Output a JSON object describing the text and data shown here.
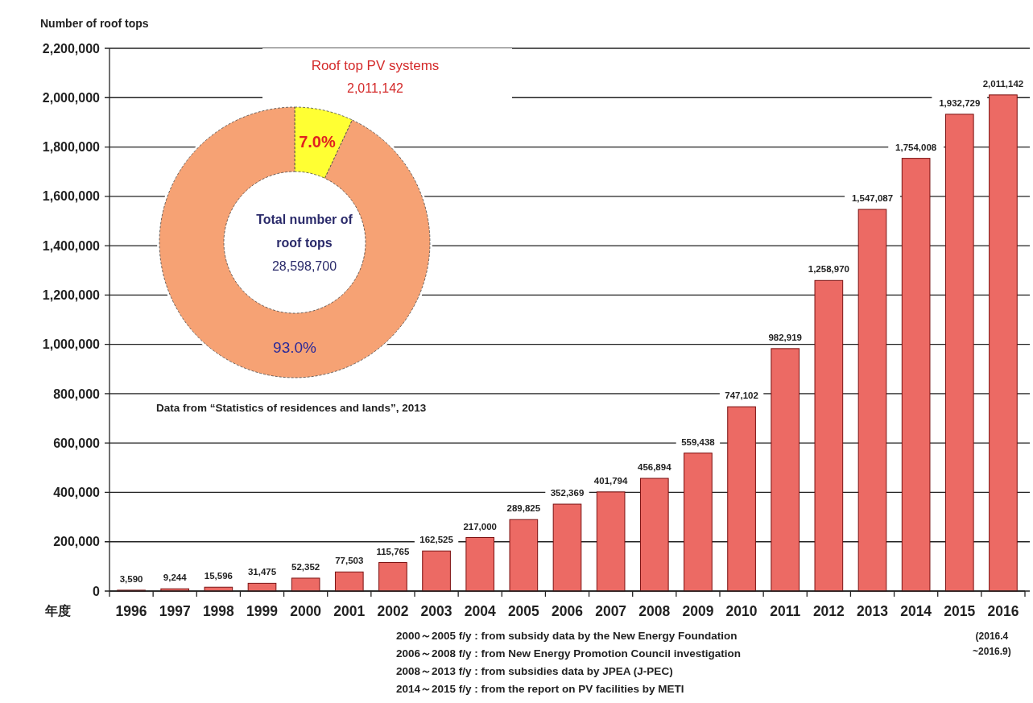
{
  "chart_data": [
    {
      "type": "bar",
      "ylabel": "Number of roof tops",
      "xlabel": "年度",
      "categories": [
        "1996",
        "1997",
        "1998",
        "1999",
        "2000",
        "2001",
        "2002",
        "2003",
        "2004",
        "2005",
        "2006",
        "2007",
        "2008",
        "2009",
        "2010",
        "2011",
        "2012",
        "2013",
        "2014",
        "2015",
        "2016"
      ],
      "values": [
        3590,
        9244,
        15596,
        31475,
        52352,
        77503,
        115765,
        162525,
        217000,
        289825,
        352369,
        401794,
        456894,
        559438,
        747102,
        982919,
        1258970,
        1547087,
        1754008,
        1932729,
        2011142
      ],
      "value_labels": [
        "3,590",
        "9,244",
        "15,596",
        "31,475",
        "52,352",
        "77,503",
        "115,765",
        "162,525",
        "217,000",
        "289,825",
        "352,369",
        "401,794",
        "456,894",
        "559,438",
        "747,102",
        "982,919",
        "1,258,970",
        "1,547,087",
        "1,754,008",
        "1,932,729",
        "2,011,142"
      ],
      "color": "#ec6a64",
      "ylim": [
        0,
        2200000
      ],
      "yticks": [
        {
          "value": 0,
          "label": "0"
        },
        {
          "value": 200000,
          "label": "200,000"
        },
        {
          "value": 400000,
          "label": "400,000"
        },
        {
          "value": 600000,
          "label": "600,000"
        },
        {
          "value": 800000,
          "label": "800,000"
        },
        {
          "value": 1000000,
          "label": "1,000,000"
        },
        {
          "value": 1200000,
          "label": "1,200,000"
        },
        {
          "value": 1400000,
          "label": "1,400,000"
        },
        {
          "value": 1600000,
          "label": "1,600,000"
        },
        {
          "value": 1800000,
          "label": "1,800,000"
        },
        {
          "value": 2000000,
          "label": "2,000,000"
        },
        {
          "value": 2200000,
          "label": "2,200,000"
        }
      ],
      "grid": "y",
      "legend": false,
      "annotations": [
        "(2016.4\n~2016.9)",
        "2000～2005 f/y :  from subsidy data by the New Energy Foundation",
        "2006～2008 f/y :  from New Energy Promotion Council investigation",
        "2008～2013 f/y :   from subsidies data by JPEA (J-PEC)",
        "2014～2015 f/y :   from the report on PV facilities by METI"
      ]
    },
    {
      "type": "donut",
      "categories": [
        "Roof top PV systems",
        null
      ],
      "values": [
        7.0,
        93.0
      ],
      "colors": [
        "#ffff33",
        "#f6a274"
      ],
      "value_labels": [
        "7.0%",
        "93.0%"
      ],
      "legend": false,
      "annotations": [
        "2,011,142",
        "Total number of\nroof tops\n28,598,700",
        "Data from “Statistics of residences and lands”, 2013"
      ]
    }
  ]
}
